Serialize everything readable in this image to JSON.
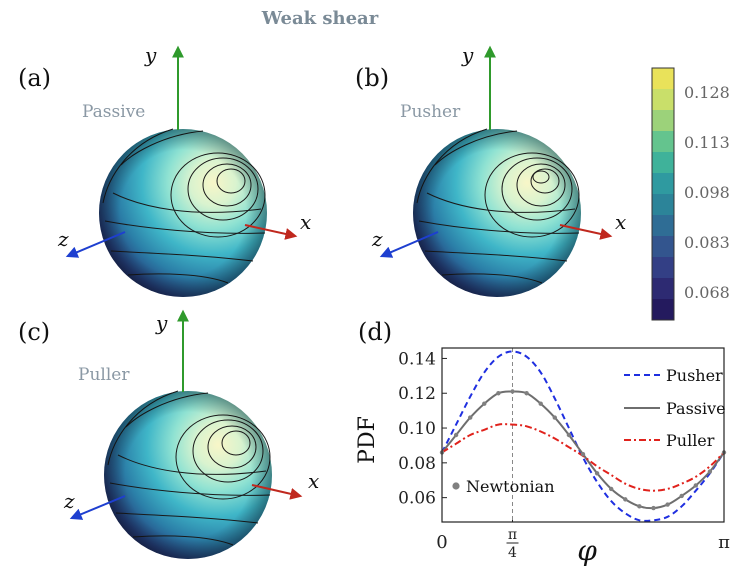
{
  "figure": {
    "title": "Weak shear",
    "colors": {
      "title": "#7a8a96",
      "label": "#8a98a4"
    }
  },
  "panels": [
    {
      "id": "a",
      "tag": "(a)",
      "label": "Passive",
      "icon": "sphere-contour-plot"
    },
    {
      "id": "b",
      "tag": "(b)",
      "label": "Pusher",
      "icon": "sphere-contour-plot"
    },
    {
      "id": "c",
      "tag": "(c)",
      "label": "Puller",
      "icon": "sphere-contour-plot"
    }
  ],
  "axes3d": {
    "x_label": "x",
    "y_label": "y",
    "z_label": "z",
    "colors": {
      "x": "#c0281e",
      "y": "#2f9a2c",
      "z": "#1e3fd0"
    }
  },
  "colorbar": {
    "ticks": [
      "0.128",
      "0.113",
      "0.098",
      "0.083",
      "0.068"
    ],
    "colors": [
      "#e9e25a",
      "#c9df6a",
      "#9cd27a",
      "#64c48e",
      "#3fb29a",
      "#2f9aa0",
      "#2c8499",
      "#2f6d95",
      "#33558e",
      "#333f85",
      "#2d2a72",
      "#241a5e"
    ]
  },
  "chart_data": {
    "panel_tag": "(d)",
    "type": "line",
    "xlabel": "φ",
    "ylabel": "PDF",
    "xlim": [
      0,
      3.1416
    ],
    "ylim": [
      0.046,
      0.146
    ],
    "x_ticks": [
      {
        "value": 0,
        "label": "0"
      },
      {
        "value": 0.7854,
        "label": "π/4",
        "num": "π",
        "den": "4"
      },
      {
        "value": 3.1416,
        "label": "π"
      }
    ],
    "y_ticks": [
      0.06,
      0.08,
      0.1,
      0.12,
      0.14
    ],
    "y_tick_labels": [
      "0.06",
      "0.08",
      "0.10",
      "0.12",
      "0.14"
    ],
    "vline_x": 0.7854,
    "x": [
      0,
      0.1571,
      0.3142,
      0.4712,
      0.6283,
      0.7854,
      0.9425,
      1.0996,
      1.2566,
      1.4137,
      1.5708,
      1.7279,
      1.885,
      2.042,
      2.1991,
      2.3562,
      2.5133,
      2.6704,
      2.8274,
      2.9845,
      3.1416
    ],
    "series": [
      {
        "name": "Pusher",
        "style": "dashed",
        "color": "#1f2fe0",
        "values": [
          0.086,
          0.102,
          0.118,
          0.132,
          0.141,
          0.144,
          0.141,
          0.132,
          0.117,
          0.1,
          0.083,
          0.069,
          0.058,
          0.051,
          0.047,
          0.047,
          0.049,
          0.055,
          0.064,
          0.074,
          0.086
        ]
      },
      {
        "name": "Passive",
        "style": "solid",
        "color": "#6e6e6e",
        "values": [
          0.086,
          0.096,
          0.106,
          0.114,
          0.12,
          0.121,
          0.12,
          0.114,
          0.106,
          0.096,
          0.085,
          0.074,
          0.065,
          0.059,
          0.055,
          0.054,
          0.056,
          0.061,
          0.067,
          0.075,
          0.086
        ]
      },
      {
        "name": "Puller",
        "style": "dashdot",
        "color": "#e0221c",
        "values": [
          0.086,
          0.091,
          0.096,
          0.099,
          0.102,
          0.102,
          0.101,
          0.098,
          0.094,
          0.089,
          0.084,
          0.078,
          0.073,
          0.068,
          0.065,
          0.064,
          0.065,
          0.068,
          0.072,
          0.078,
          0.086
        ]
      }
    ],
    "markers": {
      "name": "Newtonian",
      "color": "#808080",
      "x": [
        0,
        0.1571,
        0.3142,
        0.4712,
        0.6283,
        0.7854,
        0.9425,
        1.0996,
        1.2566,
        1.4137,
        1.5708,
        1.7279,
        1.885,
        2.042,
        2.1991,
        2.3562,
        2.5133,
        2.6704,
        2.8274,
        2.9845,
        3.1416
      ],
      "values": [
        0.086,
        0.096,
        0.106,
        0.114,
        0.12,
        0.121,
        0.12,
        0.114,
        0.106,
        0.096,
        0.085,
        0.074,
        0.065,
        0.059,
        0.055,
        0.054,
        0.056,
        0.061,
        0.067,
        0.075,
        0.086
      ]
    }
  }
}
